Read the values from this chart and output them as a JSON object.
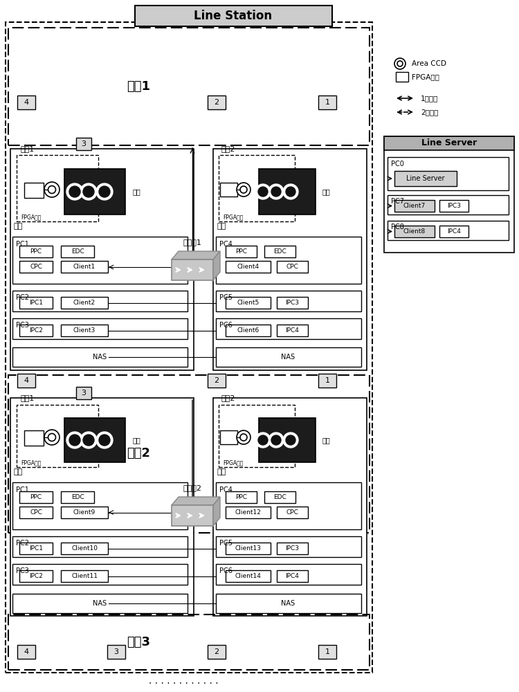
{
  "title": "Line Station",
  "gray_light": "#d8d8d8",
  "gray_med": "#b0b0b0",
  "legend_area_ccd": "Area CCD",
  "legend_fpga": "FPGA平台",
  "legend_1net": "1级网络",
  "legend_2net": "2级网络",
  "xianti1": "线体1",
  "xianti2": "线体2",
  "xianti3": "线体3",
  "zhan1": "工站1",
  "zhan2": "工站2",
  "zaitian": "载台",
  "ruanjian": "软体",
  "fpga": "FPGA平台",
  "switch1": "交换朜1",
  "switch2": "交换朜2",
  "line_server": "Line Server",
  "nas": "NAS"
}
